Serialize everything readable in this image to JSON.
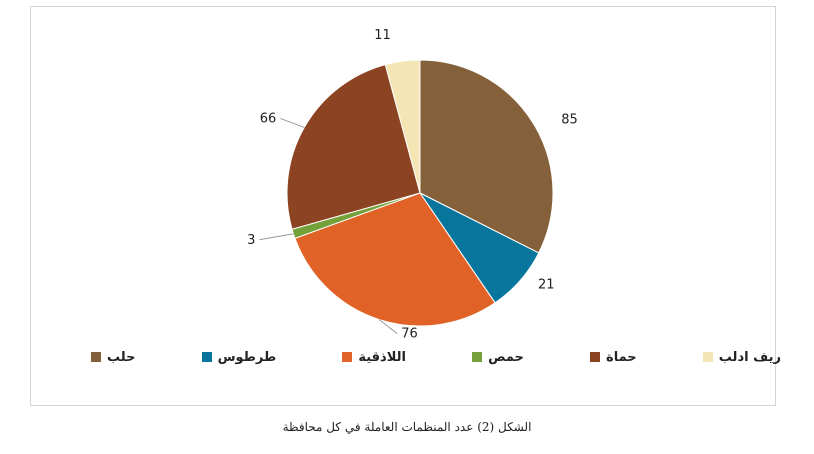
{
  "chart_data": {
    "type": "pie",
    "caption": "الشكل (2) عدد المنظمات العاملة في كل محافظة",
    "slices": [
      {
        "label": "حلب",
        "value": 85,
        "color": "#85613b"
      },
      {
        "label": "طرطوس",
        "value": 21,
        "color": "#07759c"
      },
      {
        "label": "اللاذقية",
        "value": 76,
        "color": "#e06226"
      },
      {
        "label": "حمص",
        "value": 3,
        "color": "#74a13a"
      },
      {
        "label": "حماة",
        "value": 66,
        "color": "#8c4321"
      },
      {
        "label": "ريف ادلب",
        "value": 11,
        "color": "#f4e5b4"
      }
    ],
    "legend_position": "bottom"
  }
}
